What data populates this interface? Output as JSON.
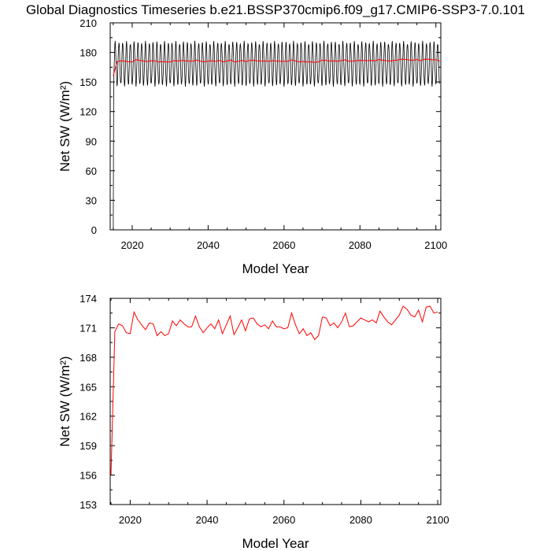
{
  "title": "Global Diagnostics Timeseries b.e21.BSSP370cmip6.f09_g17.CMIP6-SSP3-7.0.101",
  "colors": {
    "monthly": "#000000",
    "annual": "#ff0000",
    "axis": "#000000"
  },
  "chart_data": [
    {
      "type": "line",
      "xlabel": "Model Year",
      "ylabel": "Net SW (W/m²)",
      "xlim": [
        2014.2,
        2101.3
      ],
      "ylim": [
        0,
        210
      ],
      "xticks": [
        2020,
        2040,
        2060,
        2080,
        2100
      ],
      "yticks": [
        0,
        30,
        60,
        90,
        120,
        150,
        180,
        210
      ],
      "grid": false,
      "series": [
        {
          "key": "monthly",
          "description": "monthly mean; starts at 0 in 2015, then seasonal cycle between about 147 and 190",
          "seasonal_min": 147,
          "seasonal_max": 190,
          "start_value": 0
        },
        {
          "key": "annual",
          "description": "annual mean; values as in the lower panel"
        }
      ]
    },
    {
      "type": "line",
      "xlabel": "Model Year",
      "ylabel": "Net SW (W/m²)",
      "xlim": [
        2014.8,
        2100.8
      ],
      "ylim": [
        153,
        174
      ],
      "xticks": [
        2020,
        2040,
        2060,
        2080,
        2100
      ],
      "yticks": [
        153,
        156,
        159,
        162,
        165,
        168,
        171,
        174
      ],
      "grid": false,
      "series": [
        {
          "key": "annual",
          "x": [
            2015,
            2016,
            2017,
            2018,
            2019,
            2020,
            2021,
            2022,
            2023,
            2024,
            2025,
            2026,
            2027,
            2028,
            2029,
            2030,
            2031,
            2032,
            2033,
            2034,
            2035,
            2036,
            2037,
            2038,
            2039,
            2040,
            2041,
            2042,
            2043,
            2044,
            2045,
            2046,
            2047,
            2048,
            2049,
            2050,
            2051,
            2052,
            2053,
            2054,
            2055,
            2056,
            2057,
            2058,
            2059,
            2060,
            2061,
            2062,
            2063,
            2064,
            2065,
            2066,
            2067,
            2068,
            2069,
            2070,
            2071,
            2072,
            2073,
            2074,
            2075,
            2076,
            2077,
            2078,
            2079,
            2080,
            2081,
            2082,
            2083,
            2084,
            2085,
            2086,
            2087,
            2088,
            2089,
            2090,
            2091,
            2092,
            2093,
            2094,
            2095,
            2096,
            2097,
            2098,
            2099,
            2100,
            2101
          ],
          "values": [
            156.0,
            170.6,
            171.4,
            171.2,
            170.5,
            170.4,
            172.6,
            171.8,
            171.3,
            170.8,
            171.5,
            171.4,
            170.2,
            170.6,
            170.2,
            170.4,
            171.7,
            171.2,
            171.8,
            171.4,
            171.1,
            171.1,
            172.2,
            171.1,
            170.5,
            171.0,
            171.4,
            170.9,
            171.8,
            170.4,
            171.3,
            172.2,
            170.3,
            171.0,
            171.8,
            170.7,
            171.9,
            172.0,
            171.4,
            171.1,
            171.3,
            170.9,
            171.7,
            171.1,
            171.1,
            170.9,
            171.0,
            172.5,
            171.3,
            170.4,
            170.9,
            170.2,
            170.5,
            169.8,
            170.2,
            172.1,
            172.0,
            171.2,
            171.5,
            171.0,
            171.6,
            172.5,
            171.1,
            171.2,
            171.6,
            172.0,
            171.8,
            171.6,
            171.8,
            171.5,
            172.7,
            172.1,
            171.6,
            171.3,
            171.8,
            172.3,
            173.2,
            172.9,
            172.3,
            172.1,
            172.8,
            171.6,
            173.1,
            173.2,
            172.5,
            172.6,
            171.2
          ]
        }
      ]
    }
  ]
}
